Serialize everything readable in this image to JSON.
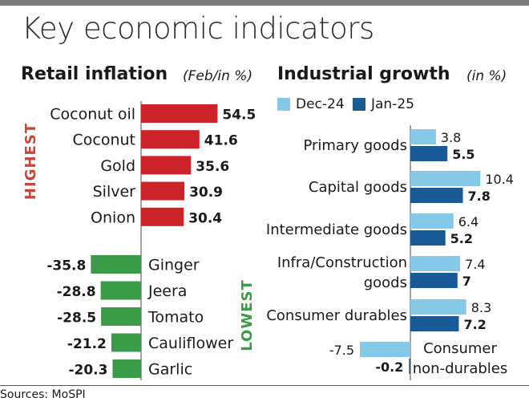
{
  "title": "Key economic indicators",
  "source": "Sources: MoSPI",
  "colors": {
    "highest": "#cc2229",
    "lowest": "#3a9b48",
    "dec24": "#86c8e8",
    "jan25": "#1a5a96",
    "highest_label": "#c9473a",
    "lowest_label": "#3a9b48"
  },
  "left_panel": {
    "title": "Retail inflation",
    "unit": "(Feb/in %)",
    "highest_label": "HIGHEST",
    "lowest_label": "LOWEST"
  },
  "right_panel": {
    "title": "Industrial growth",
    "unit": "(in %)"
  },
  "chart_data": [
    {
      "type": "bar",
      "orientation": "horizontal",
      "title": "Retail inflation",
      "unit": "(Feb/in %)",
      "categories": [
        "Coconut oil",
        "Coconut",
        "Gold",
        "Silver",
        "Onion",
        "Ginger",
        "Jeera",
        "Tomato",
        "Cauliflower",
        "Garlic"
      ],
      "values": [
        54.5,
        41.6,
        35.6,
        30.9,
        30.4,
        -35.8,
        -28.8,
        -28.5,
        -21.2,
        -20.3
      ],
      "groups": [
        {
          "name": "HIGHEST",
          "categories": [
            "Coconut oil",
            "Coconut",
            "Gold",
            "Silver",
            "Onion"
          ]
        },
        {
          "name": "LOWEST",
          "categories": [
            "Ginger",
            "Jeera",
            "Tomato",
            "Cauliflower",
            "Garlic"
          ]
        }
      ]
    },
    {
      "type": "bar",
      "orientation": "horizontal",
      "title": "Industrial growth",
      "unit": "(in %)",
      "categories": [
        "Primary goods",
        "Capital goods",
        "Intermediate goods",
        "Infra/Construction goods",
        "Consumer durables",
        "Consumer non-durables"
      ],
      "category_lines": [
        [
          "Primary goods"
        ],
        [
          "Capital goods"
        ],
        [
          "Intermediate goods"
        ],
        [
          "Infra/Construction",
          "goods"
        ],
        [
          "Consumer durables"
        ],
        [
          "Consumer",
          "non-durables"
        ]
      ],
      "value_labels": [
        [
          "3.8",
          "5.5"
        ],
        [
          "10.4",
          "7.8"
        ],
        [
          "6.4",
          "5.2"
        ],
        [
          "7.4",
          "7"
        ],
        [
          "8.3",
          "7.2"
        ],
        [
          "-7.5",
          "-0.2"
        ]
      ],
      "series": [
        {
          "name": "Dec-24",
          "values": [
            3.8,
            10.4,
            6.4,
            7.4,
            8.3,
            -7.5
          ]
        },
        {
          "name": "Jan-25",
          "values": [
            5.5,
            7.8,
            5.2,
            7,
            7.2,
            -0.2
          ]
        }
      ],
      "legend": "top-left"
    }
  ]
}
